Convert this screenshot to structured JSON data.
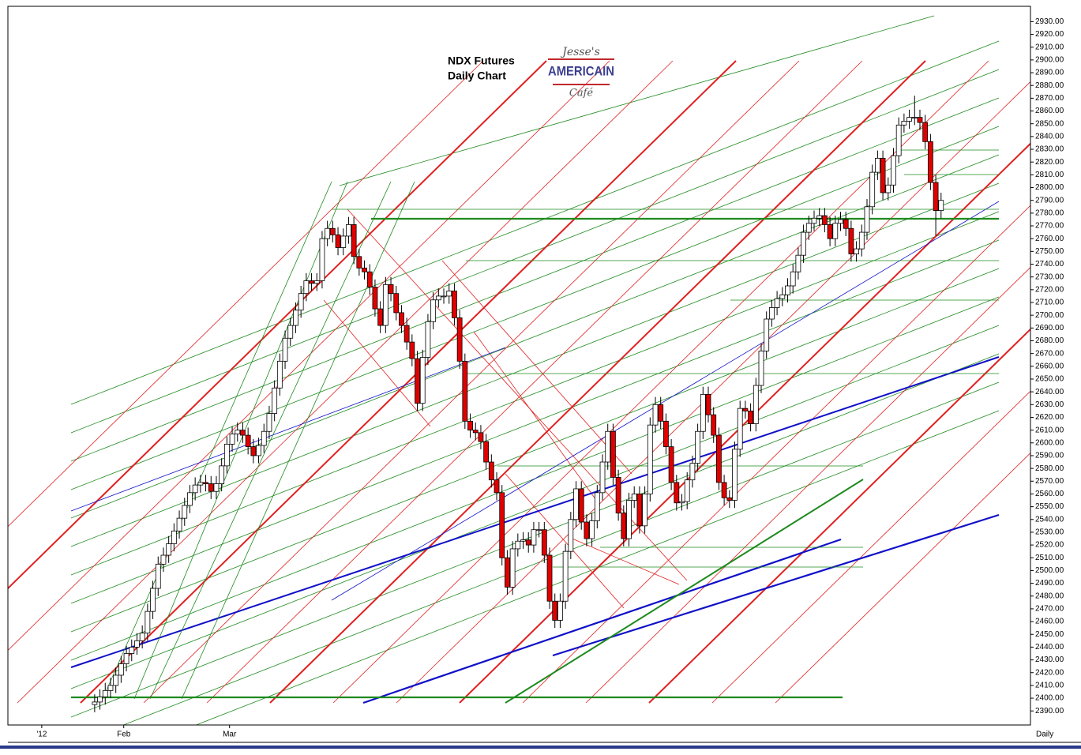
{
  "chart_data": {
    "type": "candlestick",
    "title": "NDX  Futures",
    "subtitle": "Daily Chart",
    "annotations": [
      "Jesse's",
      "AMERICAIN",
      "Café"
    ],
    "period_label": "Daily",
    "up_color": "#ffffff",
    "down_color": "#e00000",
    "xlim": [
      -16.4,
      176.9
    ],
    "xticks": [
      {
        "value": -10,
        "label": "'12"
      },
      {
        "value": 5.5,
        "label": "Feb"
      },
      {
        "value": 25.5,
        "label": "Mar"
      }
    ],
    "ylim": [
      2379,
      2942
    ],
    "yticks": [
      {
        "value": 2390,
        "label": "2390.00"
      },
      {
        "value": 2400,
        "label": "2400.00"
      },
      {
        "value": 2410,
        "label": "2410.00"
      },
      {
        "value": 2420,
        "label": "2420.00"
      },
      {
        "value": 2430,
        "label": "2430.00"
      },
      {
        "value": 2440,
        "label": "2440.00"
      },
      {
        "value": 2450,
        "label": "2450.00"
      },
      {
        "value": 2460,
        "label": "2460.00"
      },
      {
        "value": 2470,
        "label": "2470.00"
      },
      {
        "value": 2480,
        "label": "2480.00"
      },
      {
        "value": 2490,
        "label": "2490.00"
      },
      {
        "value": 2500,
        "label": "2500.00"
      },
      {
        "value": 2510,
        "label": "2510.00"
      },
      {
        "value": 2520,
        "label": "2520.00"
      },
      {
        "value": 2530,
        "label": "2530.00"
      },
      {
        "value": 2540,
        "label": "2540.00"
      },
      {
        "value": 2550,
        "label": "2550.00"
      },
      {
        "value": 2560,
        "label": "2560.00"
      },
      {
        "value": 2570,
        "label": "2570.00"
      },
      {
        "value": 2580,
        "label": "2580.00"
      },
      {
        "value": 2590,
        "label": "2590.00"
      },
      {
        "value": 2600,
        "label": "2600.00"
      },
      {
        "value": 2610,
        "label": "2610.00"
      },
      {
        "value": 2620,
        "label": "2620.00"
      },
      {
        "value": 2630,
        "label": "2630.00"
      },
      {
        "value": 2640,
        "label": "2640.00"
      },
      {
        "value": 2650,
        "label": "2650.00"
      },
      {
        "value": 2660,
        "label": "2660.00"
      },
      {
        "value": 2670,
        "label": "2670.00"
      },
      {
        "value": 2680,
        "label": "2680.00"
      },
      {
        "value": 2690,
        "label": "2690.00"
      },
      {
        "value": 2700,
        "label": "2700.00"
      },
      {
        "value": 2710,
        "label": "2710.00"
      },
      {
        "value": 2720,
        "label": "2720.00"
      },
      {
        "value": 2730,
        "label": "2730.00"
      },
      {
        "value": 2740,
        "label": "2740.00"
      },
      {
        "value": 2750,
        "label": "2750.00"
      },
      {
        "value": 2760,
        "label": "2760.00"
      },
      {
        "value": 2770,
        "label": "2770.00"
      },
      {
        "value": 2780,
        "label": "2780.00"
      },
      {
        "value": 2790,
        "label": "2790.00"
      },
      {
        "value": 2800,
        "label": "2800.00"
      },
      {
        "value": 2810,
        "label": "2810.00"
      },
      {
        "value": 2820,
        "label": "2820.00"
      },
      {
        "value": 2830,
        "label": "2830.00"
      },
      {
        "value": 2840,
        "label": "2840.00"
      },
      {
        "value": 2850,
        "label": "2850.00"
      },
      {
        "value": 2860,
        "label": "2860.00"
      },
      {
        "value": 2870,
        "label": "2870.00"
      },
      {
        "value": 2880,
        "label": "2880.00"
      },
      {
        "value": 2890,
        "label": "2890.00"
      },
      {
        "value": 2900,
        "label": "2900.00"
      },
      {
        "value": 2910,
        "label": "2910.00"
      },
      {
        "value": 2920,
        "label": "2920.00"
      },
      {
        "value": 2930,
        "label": "2930.00"
      }
    ],
    "open": [
      2395,
      2397,
      2401,
      2406,
      2410,
      2418,
      2427,
      2435,
      2440,
      2445,
      2451,
      2468,
      2486,
      2505,
      2512,
      2521,
      2531,
      2541,
      2551,
      2561,
      2567,
      2569,
      2568,
      2562,
      2568,
      2582,
      2599,
      2607,
      2610,
      2606,
      2597,
      2590,
      2598,
      2609,
      2623,
      2643,
      2664,
      2682,
      2692,
      2704,
      2717,
      2727,
      2725,
      2727,
      2760,
      2768,
      2763,
      2753,
      2762,
      2771,
      2746,
      2737,
      2734,
      2722,
      2705,
      2692,
      2724,
      2717,
      2702,
      2692,
      2679,
      2666,
      2631,
      2667,
      2695,
      2712,
      2715,
      2715,
      2719,
      2698,
      2664,
      2617,
      2610,
      2608,
      2601,
      2585,
      2571,
      2561,
      2510,
      2487,
      2517,
      2523,
      2524,
      2520,
      2532,
      2532,
      2512,
      2476,
      2461,
      2476,
      2515,
      2540,
      2564,
      2538,
      2525,
      2539,
      2561,
      2585,
      2609,
      2573,
      2545,
      2525,
      2555,
      2560,
      2535,
      2560,
      2614,
      2630,
      2617,
      2597,
      2569,
      2553,
      2554,
      2571,
      2584,
      2609,
      2638,
      2622,
      2606,
      2569,
      2557,
      2555,
      2595,
      2627,
      2625,
      2615,
      2645,
      2672,
      2697,
      2706,
      2713,
      2716,
      2723,
      2734,
      2747,
      2765,
      2772,
      2776,
      2778,
      2771,
      2760,
      2772,
      2775,
      2768,
      2748,
      2752,
      2765,
      2785,
      2812,
      2823,
      2796,
      2802,
      2825,
      2849,
      2852,
      2855,
      2855,
      2851,
      2836,
      2804,
      2782
    ],
    "high": [
      2403,
      2407,
      2412,
      2416,
      2424,
      2433,
      2441,
      2446,
      2451,
      2457,
      2474,
      2492,
      2511,
      2518,
      2527,
      2537,
      2547,
      2557,
      2567,
      2573,
      2575,
      2575,
      2574,
      2574,
      2588,
      2605,
      2613,
      2616,
      2616,
      2612,
      2603,
      2604,
      2615,
      2629,
      2649,
      2670,
      2688,
      2698,
      2710,
      2723,
      2733,
      2733,
      2733,
      2766,
      2774,
      2774,
      2769,
      2768,
      2777,
      2777,
      2752,
      2743,
      2740,
      2728,
      2711,
      2730,
      2730,
      2723,
      2708,
      2698,
      2685,
      2672,
      2673,
      2701,
      2718,
      2721,
      2721,
      2725,
      2725,
      2704,
      2670,
      2623,
      2616,
      2614,
      2607,
      2591,
      2577,
      2567,
      2516,
      2523,
      2529,
      2530,
      2530,
      2538,
      2538,
      2538,
      2518,
      2482,
      2482,
      2521,
      2546,
      2570,
      2570,
      2544,
      2545,
      2567,
      2591,
      2615,
      2615,
      2579,
      2551,
      2561,
      2566,
      2566,
      2566,
      2620,
      2636,
      2636,
      2623,
      2603,
      2575,
      2560,
      2577,
      2590,
      2615,
      2644,
      2644,
      2628,
      2612,
      2575,
      2563,
      2601,
      2633,
      2633,
      2631,
      2651,
      2678,
      2703,
      2712,
      2719,
      2722,
      2729,
      2740,
      2753,
      2771,
      2778,
      2782,
      2784,
      2784,
      2777,
      2778,
      2781,
      2781,
      2774,
      2758,
      2771,
      2791,
      2818,
      2829,
      2829,
      2808,
      2831,
      2855,
      2858,
      2861,
      2872,
      2861,
      2857,
      2842,
      2810,
      2796
    ],
    "low": [
      2389,
      2391,
      2395,
      2400,
      2404,
      2412,
      2421,
      2429,
      2434,
      2439,
      2445,
      2462,
      2480,
      2499,
      2506,
      2515,
      2525,
      2535,
      2545,
      2555,
      2561,
      2562,
      2556,
      2556,
      2562,
      2576,
      2593,
      2601,
      2600,
      2591,
      2584,
      2584,
      2592,
      2603,
      2617,
      2637,
      2658,
      2676,
      2686,
      2698,
      2711,
      2719,
      2719,
      2721,
      2754,
      2757,
      2747,
      2747,
      2756,
      2740,
      2731,
      2728,
      2716,
      2699,
      2686,
      2686,
      2711,
      2696,
      2686,
      2673,
      2660,
      2625,
      2625,
      2661,
      2689,
      2706,
      2709,
      2709,
      2692,
      2658,
      2611,
      2604,
      2602,
      2595,
      2579,
      2565,
      2555,
      2504,
      2481,
      2481,
      2511,
      2517,
      2514,
      2514,
      2526,
      2506,
      2470,
      2455,
      2455,
      2470,
      2509,
      2534,
      2532,
      2519,
      2519,
      2533,
      2555,
      2579,
      2567,
      2539,
      2519,
      2519,
      2549,
      2529,
      2529,
      2554,
      2608,
      2611,
      2591,
      2563,
      2547,
      2547,
      2548,
      2565,
      2578,
      2603,
      2616,
      2600,
      2563,
      2551,
      2549,
      2549,
      2589,
      2619,
      2609,
      2609,
      2639,
      2666,
      2691,
      2700,
      2707,
      2710,
      2717,
      2728,
      2741,
      2759,
      2766,
      2770,
      2765,
      2754,
      2754,
      2766,
      2762,
      2742,
      2742,
      2746,
      2759,
      2779,
      2806,
      2790,
      2790,
      2796,
      2819,
      2843,
      2846,
      2849,
      2845,
      2830,
      2798,
      2762,
      2776
    ],
    "close": [
      2397,
      2401,
      2406,
      2410,
      2418,
      2427,
      2435,
      2440,
      2445,
      2451,
      2468,
      2486,
      2505,
      2512,
      2521,
      2531,
      2541,
      2551,
      2561,
      2567,
      2569,
      2568,
      2562,
      2568,
      2582,
      2599,
      2607,
      2610,
      2606,
      2597,
      2590,
      2598,
      2609,
      2623,
      2643,
      2664,
      2682,
      2692,
      2704,
      2717,
      2727,
      2725,
      2727,
      2760,
      2768,
      2763,
      2753,
      2762,
      2771,
      2746,
      2737,
      2734,
      2722,
      2705,
      2692,
      2724,
      2717,
      2702,
      2692,
      2679,
      2666,
      2631,
      2667,
      2695,
      2712,
      2715,
      2715,
      2719,
      2698,
      2664,
      2617,
      2610,
      2608,
      2601,
      2585,
      2571,
      2561,
      2510,
      2487,
      2517,
      2523,
      2524,
      2520,
      2532,
      2532,
      2512,
      2476,
      2461,
      2476,
      2515,
      2540,
      2564,
      2538,
      2525,
      2539,
      2561,
      2585,
      2609,
      2573,
      2545,
      2525,
      2555,
      2560,
      2535,
      2560,
      2614,
      2630,
      2617,
      2597,
      2569,
      2553,
      2554,
      2571,
      2584,
      2609,
      2638,
      2622,
      2606,
      2569,
      2557,
      2555,
      2595,
      2627,
      2625,
      2615,
      2645,
      2672,
      2697,
      2706,
      2713,
      2716,
      2723,
      2734,
      2747,
      2765,
      2772,
      2776,
      2778,
      2771,
      2760,
      2772,
      2775,
      2768,
      2748,
      2752,
      2765,
      2785,
      2812,
      2823,
      2796,
      2802,
      2825,
      2849,
      2852,
      2855,
      2855,
      2851,
      2836,
      2804,
      2782,
      2790
    ]
  }
}
